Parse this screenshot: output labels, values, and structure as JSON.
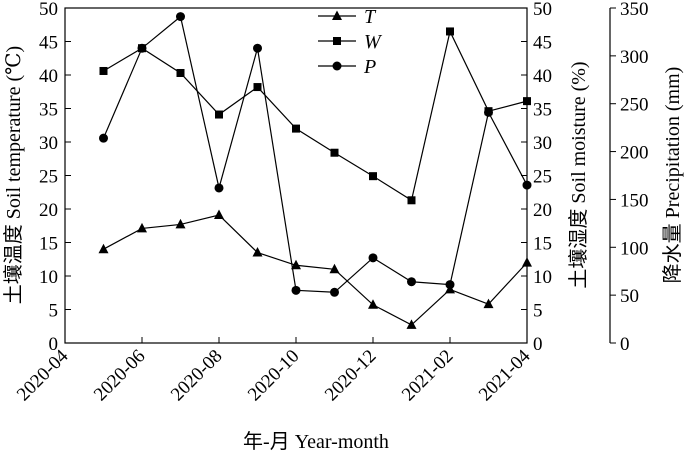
{
  "chart_data": {
    "type": "line",
    "xlabel": "年-月 Year-month",
    "ylabel_left": "土壤温度 Soil temperature (℃)",
    "ylabel_right1": "土壤湿度 Soil moisture (%)",
    "ylabel_right2": "降水量 Precipitation (mm)",
    "x_ticks": [
      "2020-04",
      "2020-06",
      "2020-08",
      "2020-10",
      "2020-12",
      "2021-02",
      "2021-04"
    ],
    "x": [
      "2020-05",
      "2020-06",
      "2020-07",
      "2020-08",
      "2020-09",
      "2020-10",
      "2020-11",
      "2020-12",
      "2021-01",
      "2021-02",
      "2021-03",
      "2021-04"
    ],
    "xlim": [
      "2020-04",
      "2021-04"
    ],
    "y_left": {
      "lim": [
        0,
        50
      ],
      "ticks": [
        0,
        5,
        10,
        15,
        20,
        25,
        30,
        35,
        40,
        45,
        50
      ]
    },
    "y_right1": {
      "lim": [
        0,
        50
      ],
      "ticks": [
        0,
        5,
        10,
        15,
        20,
        25,
        30,
        35,
        40,
        45,
        50
      ]
    },
    "y_right2": {
      "lim": [
        0,
        350
      ],
      "ticks": [
        0,
        50,
        100,
        150,
        200,
        250,
        300,
        350
      ]
    },
    "legend_position": "top-center",
    "grid": false,
    "series": [
      {
        "name": "T",
        "marker": "triangle",
        "axis": "left",
        "values": [
          14.0,
          17.1,
          17.7,
          19.1,
          13.5,
          11.6,
          11.0,
          5.7,
          2.7,
          8.0,
          5.8,
          12.0
        ]
      },
      {
        "name": "W",
        "marker": "square",
        "axis": "right1",
        "values": [
          40.6,
          44.0,
          40.3,
          34.1,
          38.2,
          32.0,
          28.4,
          24.9,
          21.3,
          46.5,
          34.6,
          36.1
        ]
      },
      {
        "name": "P",
        "marker": "circle",
        "axis": "right2",
        "values": [
          214,
          308,
          341,
          162,
          308,
          55,
          53,
          89,
          64,
          61,
          241,
          165
        ]
      }
    ]
  }
}
